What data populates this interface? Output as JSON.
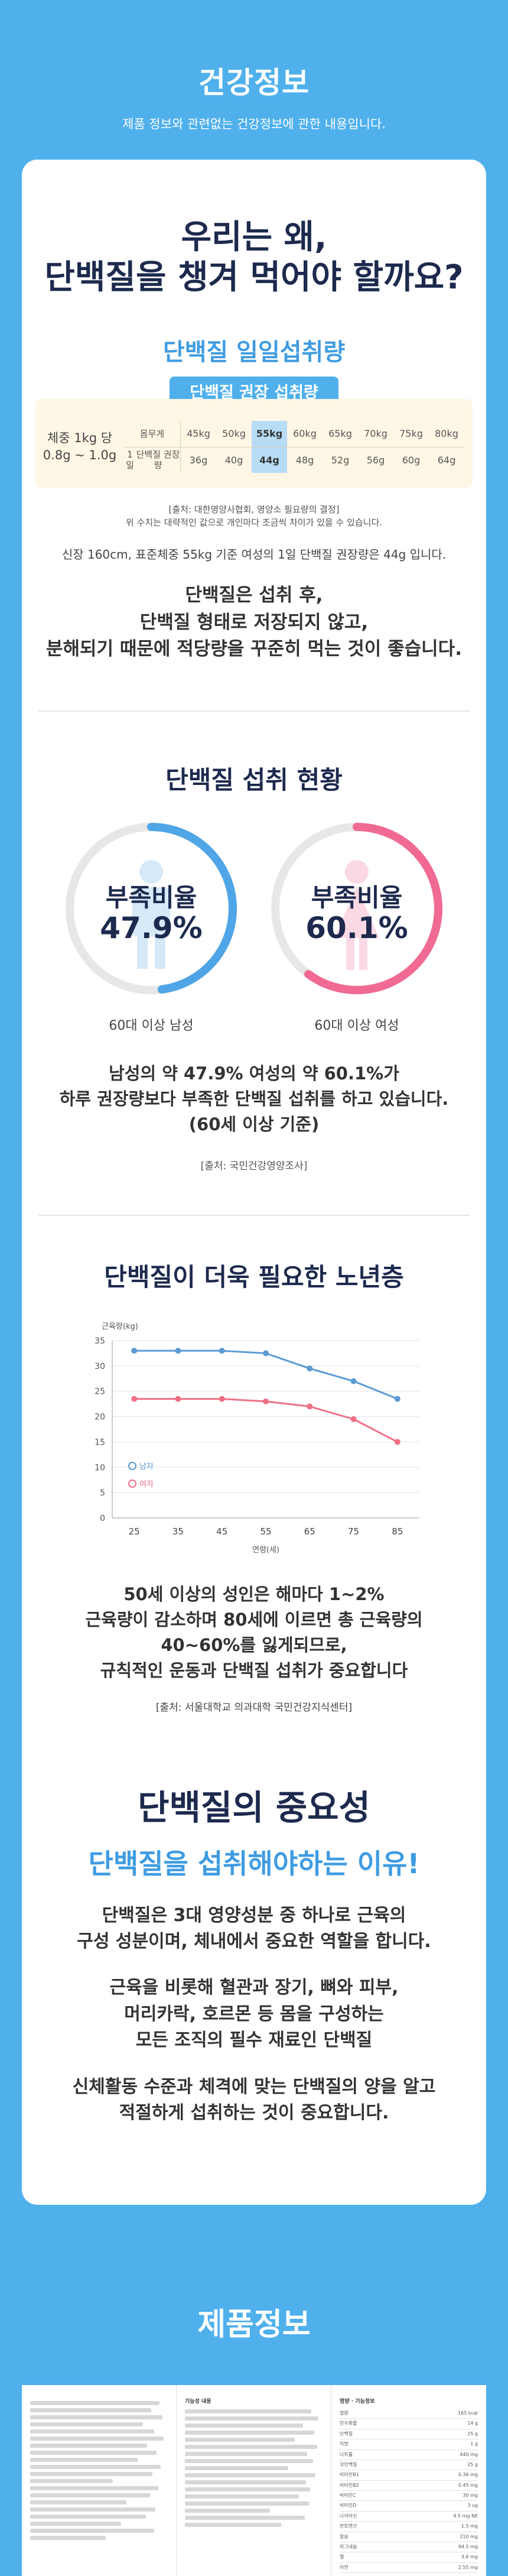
{
  "header": {
    "title": "건강정보",
    "subtitle": "제품 정보와 관련없는 건강정보에 관한 내용입니다."
  },
  "hero": {
    "title_line1": "우리는 왜,",
    "title_line2": "단백질을 챙겨 먹어야 할까요?"
  },
  "intake": {
    "subtitle": "단백질 일일섭취량",
    "chip": "단백질 권장 섭취량",
    "left_label_line1": "체중 1kg 당",
    "left_label_line2": "0.8g ~ 1.0g",
    "row1_head": "몸무게",
    "row2_head_line1": "1일",
    "row2_head_line2": "단백질 권장량",
    "weights": [
      "45kg",
      "50kg",
      "55kg",
      "60kg",
      "65kg",
      "70kg",
      "75kg",
      "80kg"
    ],
    "amounts": [
      "36g",
      "40g",
      "44g",
      "48g",
      "52g",
      "56g",
      "60g",
      "64g"
    ],
    "highlight_index": 2,
    "source_line1": "[출처: 대한영양사협회, 영양소 필요량의 결정]",
    "source_line2": "위 수치는 대략적인 값으로 개인마다 조금씩 차이가 있을 수 있습니다.",
    "note": "신장 160cm, 표준체중 55kg 기준 여성의 1일 단백질 권장량은 44g 입니다.",
    "para_line1": "단백질은 섭취 후,",
    "para_line2": "단백질 형태로 저장되지 않고,",
    "para_line3": "분해되기 때문에 적당량을 꾸준히 먹는 것이 좋습니다."
  },
  "status": {
    "title": "단백질 섭취 현황",
    "ratio_label": "부족비율",
    "male_value": "47.9%",
    "male_fraction": 0.479,
    "male_caption": "60대 이상 남성",
    "male_color": "#4fa5e6",
    "female_value": "60.1%",
    "female_fraction": 0.601,
    "female_caption": "60대 이상 여성",
    "female_color": "#f06a93",
    "para_line1": "남성의 약 47.9% 여성의 약 60.1%가",
    "para_line2": "하루 권장량보다 부족한 단백질 섭취를 하고 있습니다.",
    "para_line3": "(60세 이상 기준)",
    "source": "[출처: 국민건강영양조사]"
  },
  "elderly": {
    "title": "단백질이 더욱 필요한 노년층",
    "para_line1": "50세 이상의 성인은 해마다 1~2%",
    "para_line2": "근육량이 감소하며 80세에 이르면 총 근육량의",
    "para_line3": "40~60%를 잃게되므로,",
    "para_line4": "규칙적인 운동과 단백질 섭취가 중요합니다",
    "source": "[출처: 서울대학교 의과대학 국민건강지식센터]"
  },
  "chart_data": {
    "type": "line",
    "xlabel": "연령(세)",
    "ylabel": "근육량(kg)",
    "x": [
      25,
      35,
      45,
      55,
      65,
      75,
      85
    ],
    "ylim": [
      0,
      35
    ],
    "yticks": [
      0,
      5,
      10,
      15,
      20,
      25,
      30,
      35
    ],
    "grid": true,
    "legend": "left",
    "series": [
      {
        "name": "남자",
        "color": "#5b9bd5",
        "values": [
          33,
          33,
          33,
          32.5,
          29.5,
          27,
          23.5
        ]
      },
      {
        "name": "여자",
        "color": "#f07086",
        "values": [
          23.5,
          23.5,
          23.5,
          23,
          22,
          19.5,
          15
        ]
      }
    ]
  },
  "importance": {
    "title": "단백질의 중요성",
    "subtitle": "단백질을 섭취해야하는 이유!",
    "para1_line1": "단백질은 3대 영양성분 중 하나로 근육의",
    "para1_line2": "구성 성분이며, 체내에서 중요한 역할을 합니다.",
    "para2_line1": "근육을 비롯해 혈관과 장기, 뼈와 피부,",
    "para2_line2": "머리카락, 호르몬 등 몸을 구성하는",
    "para2_line3": "모든 조직의 필수 재료인 단백질",
    "para3_line1": "신체활동 수준과 체격에 맞는 단백질의 양을 알고",
    "para3_line2": "적절하게 섭취하는 것이 중요합니다."
  },
  "product": {
    "title": "제품정보",
    "col2_head": "기능성 내용",
    "col3_head": "영양 · 기능정보",
    "nutrition_rows": [
      [
        "열량",
        "165 kcal"
      ],
      [
        "탄수화물",
        "14 g"
      ],
      [
        "단백질",
        "25 g"
      ],
      [
        "지방",
        "1 g"
      ],
      [
        "나트륨",
        "440 mg"
      ],
      [
        "코인백질",
        "25 g"
      ],
      [
        "비타민B1",
        "0.36 mg"
      ],
      [
        "비타민B2",
        "0.45 mg"
      ],
      [
        "비타민C",
        "30 mg"
      ],
      [
        "비타민D",
        "3 ug"
      ],
      [
        "나이아신",
        "4.5 mg NE"
      ],
      [
        "판토텐산",
        "1.5 mg"
      ],
      [
        "칼슘",
        "210 mg"
      ],
      [
        "마그네슘",
        "94.5 mg"
      ],
      [
        "철",
        "3.6 mg"
      ],
      [
        "아연",
        "2.55 mg"
      ]
    ]
  }
}
